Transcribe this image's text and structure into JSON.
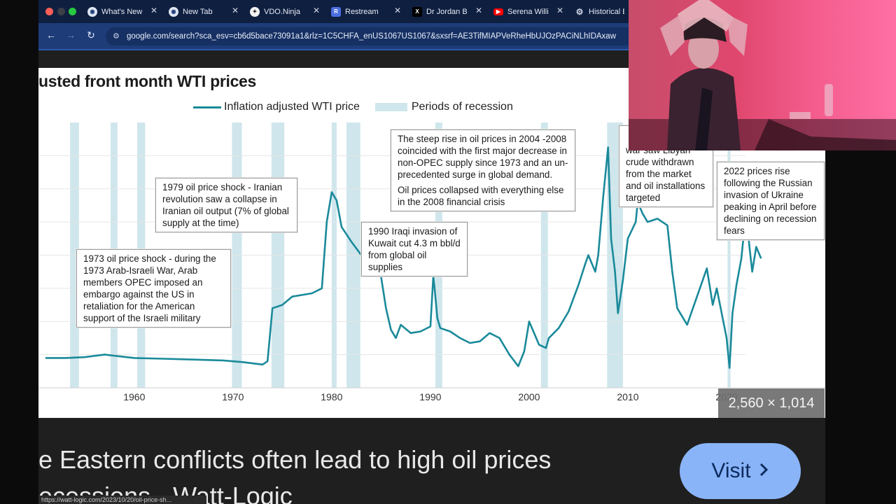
{
  "browser": {
    "tabs": [
      {
        "title": "What's New",
        "favicon": "chrome-icon"
      },
      {
        "title": "New Tab",
        "favicon": "chrome-icon"
      },
      {
        "title": "VDO.Ninja",
        "favicon": "vdo-ninja-icon"
      },
      {
        "title": "Restream",
        "favicon": "restream-icon"
      },
      {
        "title": "Dr Jordan B",
        "favicon": "x-icon"
      },
      {
        "title": "Serena Willi",
        "favicon": "youtube-icon"
      },
      {
        "title": "Historical E",
        "favicon": "gear-icon"
      }
    ],
    "address": "google.com/search?sca_esv=cb6d5bace73091a1&rlz=1C5CHFA_enUS1067US1067&sxsrf=AE3TifMIAPVeRheHbUJOzPACiNLhIDAxaw"
  },
  "chart_header": {
    "title": "usted front month WTI prices",
    "legend": [
      {
        "label": "Inflation adjusted WTI price",
        "color": "#1a8a9a"
      },
      {
        "label": "Periods of recession",
        "color": "#cfe6ec"
      }
    ]
  },
  "chart_data": {
    "type": "line",
    "title": "usted front month WTI prices",
    "series": [
      {
        "name": "Inflation adjusted WTI price",
        "x": [
          1951,
          1953,
          1955,
          1957,
          1960,
          1963,
          1966,
          1969,
          1971,
          1973,
          1973.5,
          1974,
          1975,
          1976,
          1977,
          1978,
          1979,
          1979.5,
          1980,
          1980.5,
          1981,
          1982,
          1983,
          1984,
          1985,
          1985.5,
          1986,
          1986.5,
          1987,
          1988,
          1989,
          1990,
          1990.3,
          1990.7,
          1991,
          1992,
          1993,
          1994,
          1995,
          1996,
          1997,
          1998,
          1998.9,
          1999.5,
          2000,
          2000.5,
          2001,
          2001.7,
          2002,
          2003,
          2004,
          2005,
          2005.7,
          2006,
          2006.7,
          2007,
          2007.5,
          2008,
          2008.3,
          2008.7,
          2009,
          2009.5,
          2010,
          2010.8,
          2011,
          2011.5,
          2012,
          2013,
          2014,
          2014.5,
          2015,
          2016,
          2017,
          2018,
          2018.6,
          2019,
          2020,
          2020.3,
          2020.6,
          2021,
          2021.5,
          2022,
          2022.3,
          2022.6,
          2023,
          2023.5
        ],
        "values": [
          18,
          18,
          18.5,
          20,
          18,
          17.5,
          17,
          16.5,
          15.5,
          14,
          16,
          48,
          50,
          55,
          56,
          57,
          60,
          100,
          118,
          113,
          97,
          88,
          80,
          73,
          67,
          48,
          35,
          30,
          38,
          33,
          34,
          37,
          68,
          42,
          36,
          34,
          30,
          27,
          28,
          33,
          30,
          20,
          13,
          22,
          40,
          33,
          26,
          24,
          30,
          36,
          46,
          62,
          75,
          80,
          70,
          80,
          115,
          145,
          90,
          70,
          45,
          65,
          90,
          100,
          112,
          105,
          100,
          102,
          98,
          70,
          48,
          38,
          55,
          72,
          50,
          60,
          30,
          12,
          45,
          62,
          78,
          108,
          86,
          70,
          85,
          78
        ]
      }
    ],
    "recessions": [
      [
        1953.5,
        1954.4
      ],
      [
        1957.6,
        1958.3
      ],
      [
        1960.3,
        1961.1
      ],
      [
        1969.9,
        1970.9
      ],
      [
        1973.9,
        1975.2
      ],
      [
        1980.0,
        1980.5
      ],
      [
        1981.5,
        1982.9
      ],
      [
        1990.5,
        1991.2
      ],
      [
        2001.2,
        2001.9
      ],
      [
        2007.9,
        2009.5
      ],
      [
        2020.1,
        2020.4
      ]
    ],
    "xlabel": "",
    "ylabel": "",
    "xticks": [
      1960,
      1970,
      1980,
      1990,
      2000,
      2010,
      2020
    ],
    "xlim": [
      1950.3,
      2030
    ],
    "ylim": [
      0,
      160
    ],
    "grid": "horizontal"
  },
  "annotations": {
    "a1973": "1973 oil price shock - during the 1973 Arab-Israeli War, Arab members OPEC imposed an embargo against the US in retaliation for the American support of the Israeli military",
    "a1979": "1979 oil price shock - Iranian revolution saw a collapse in Iranian oil output (7% of global supply at the time)",
    "a1990": "1990 Iraqi invasion of Kuwait cut 4.3 m bbl/d from global oil supplies",
    "a2004_p1": "The steep rise in oil prices in 2004 -2008 coincided with the first major decrease in non-OPEC supply since 1973 and an un-precedented surge in global demand.",
    "a2004_p2": "Oil prices collapsed with everything else in the 2008 financial crisis",
    "a2011": "war saw Libyan crude withdrawn from the market and oil installations targeted",
    "a2022": "2022 prices rise following the Russian invasion of Ukraine peaking in April before declining on recession fears"
  },
  "image_size": "2,560 × 1,014",
  "result": {
    "caption_line1": "e Eastern conflicts often lead to high oil prices",
    "caption_line2": "ecessions - Watt-Logic",
    "visit_label": "Visit",
    "status_url": "https://watt-logic.com/2023/10/20/oil-price-sh..."
  }
}
